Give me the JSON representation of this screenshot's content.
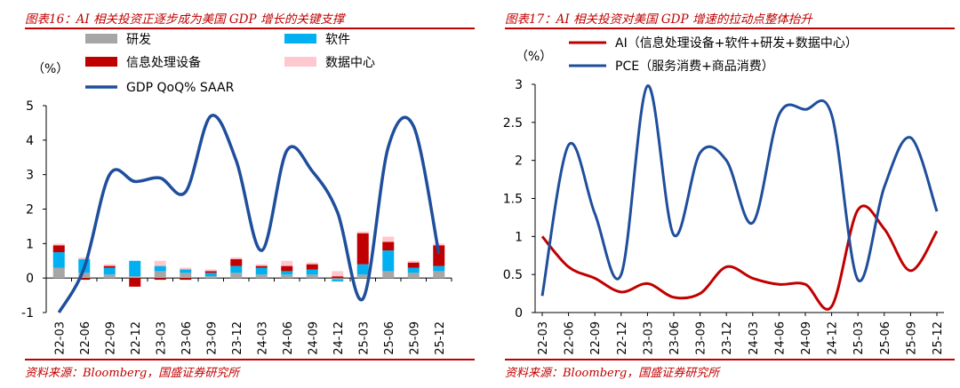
{
  "left": {
    "title": "图表16：AI 相关投资正逐步成为美国 GDP 增长的关键支撑",
    "source": "资料来源：Bloomberg，国盛证券研究所"
  },
  "right": {
    "title": "图表17：AI 相关投资对美国 GDP 增速的拉动点整体抬升",
    "source": "资料来源：Bloomberg，国盛证券研究所"
  },
  "chart_data": [
    {
      "type": "bar",
      "stacked": true,
      "title": "",
      "ylabel": "（%）",
      "ylim": [
        -1,
        5
      ],
      "yticks": [
        -1,
        0,
        1,
        2,
        3,
        4,
        5
      ],
      "grid": false,
      "legend": "top",
      "categories": [
        "22-03",
        "22-06",
        "22-09",
        "22-12",
        "23-03",
        "23-06",
        "23-09",
        "23-12",
        "24-03",
        "24-06",
        "24-09",
        "24-12",
        "25-03",
        "25-06",
        "25-09",
        "25-12"
      ],
      "series": [
        {
          "name": "研发",
          "kind": "bar",
          "color": "#a6a6a6",
          "values": [
            0.3,
            0.15,
            0.1,
            0.05,
            0.2,
            0.15,
            0.05,
            0.15,
            0.1,
            0.1,
            0.1,
            -0.05,
            0.1,
            0.2,
            0.15,
            0.2
          ]
        },
        {
          "name": "软件",
          "kind": "bar",
          "color": "#00b0f0",
          "values": [
            0.45,
            0.4,
            0.2,
            0.45,
            0.15,
            0.1,
            0.1,
            0.2,
            0.2,
            0.1,
            0.15,
            -0.05,
            0.3,
            0.6,
            0.15,
            0.15
          ]
        },
        {
          "name": "信息处理设备",
          "kind": "bar",
          "color": "#c00000",
          "values": [
            0.2,
            -0.05,
            0.05,
            -0.25,
            -0.05,
            -0.05,
            0.05,
            0.2,
            0.05,
            0.15,
            0.15,
            0.05,
            0.9,
            0.25,
            0.15,
            0.6
          ]
        },
        {
          "name": "数据中心",
          "kind": "bar",
          "color": "#ffc7ce",
          "values": [
            0.05,
            0.05,
            0.05,
            0.0,
            0.15,
            0.05,
            0.05,
            0.05,
            0.05,
            0.15,
            0.05,
            0.15,
            0.05,
            0.15,
            0.05,
            0.05
          ]
        },
        {
          "name": "GDP QoQ% SAAR",
          "kind": "line",
          "color": "#1f4e9c",
          "values": [
            -1.0,
            0.3,
            3.0,
            2.8,
            2.9,
            2.5,
            4.7,
            3.4,
            0.8,
            3.7,
            3.1,
            1.9,
            -0.6,
            3.8,
            4.4,
            0.7
          ]
        }
      ]
    },
    {
      "type": "line",
      "title": "",
      "ylabel": "（%）",
      "ylim": [
        0,
        3
      ],
      "yticks": [
        0,
        0.5,
        1,
        1.5,
        2,
        2.5,
        3
      ],
      "grid": false,
      "legend": "top",
      "categories": [
        "22-03",
        "22-06",
        "22-09",
        "22-12",
        "23-03",
        "23-06",
        "23-09",
        "23-12",
        "24-03",
        "24-06",
        "24-09",
        "24-12",
        "25-03",
        "25-06",
        "25-09",
        "25-12"
      ],
      "series": [
        {
          "name": "AI（信息处理设备+软件+研发+数据中心）",
          "color": "#c00000",
          "values": [
            1.0,
            0.6,
            0.45,
            0.27,
            0.38,
            0.2,
            0.25,
            0.6,
            0.45,
            0.37,
            0.37,
            0.08,
            1.35,
            1.1,
            0.55,
            1.07
          ]
        },
        {
          "name": "PCE（服务消费+商品消费）",
          "color": "#1f4e9c",
          "values": [
            0.22,
            2.2,
            1.3,
            0.5,
            2.98,
            1.02,
            2.1,
            2.0,
            1.18,
            2.6,
            2.67,
            2.6,
            0.43,
            1.65,
            2.3,
            1.33
          ]
        }
      ]
    }
  ]
}
